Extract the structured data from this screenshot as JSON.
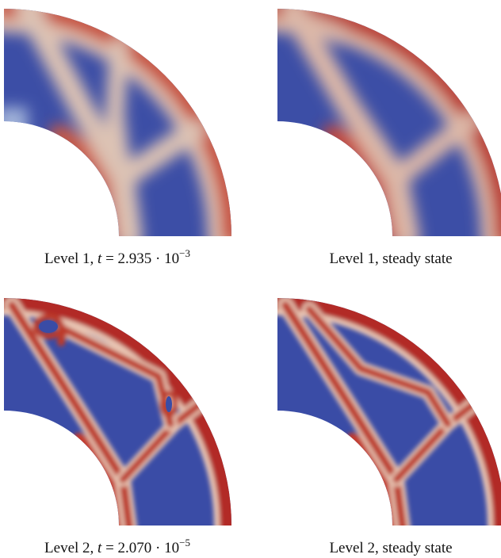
{
  "figure": {
    "panels": [
      {
        "caption": [
          "Level 1, ",
          "t",
          " = 2.935 · 10",
          "−3"
        ]
      },
      {
        "caption": [
          "Level 1, steady state"
        ]
      },
      {
        "caption": [
          "Level 2, ",
          "t",
          " = 2.070 · 10",
          "−5"
        ]
      },
      {
        "caption": [
          "Level 2, steady state"
        ]
      }
    ]
  }
}
